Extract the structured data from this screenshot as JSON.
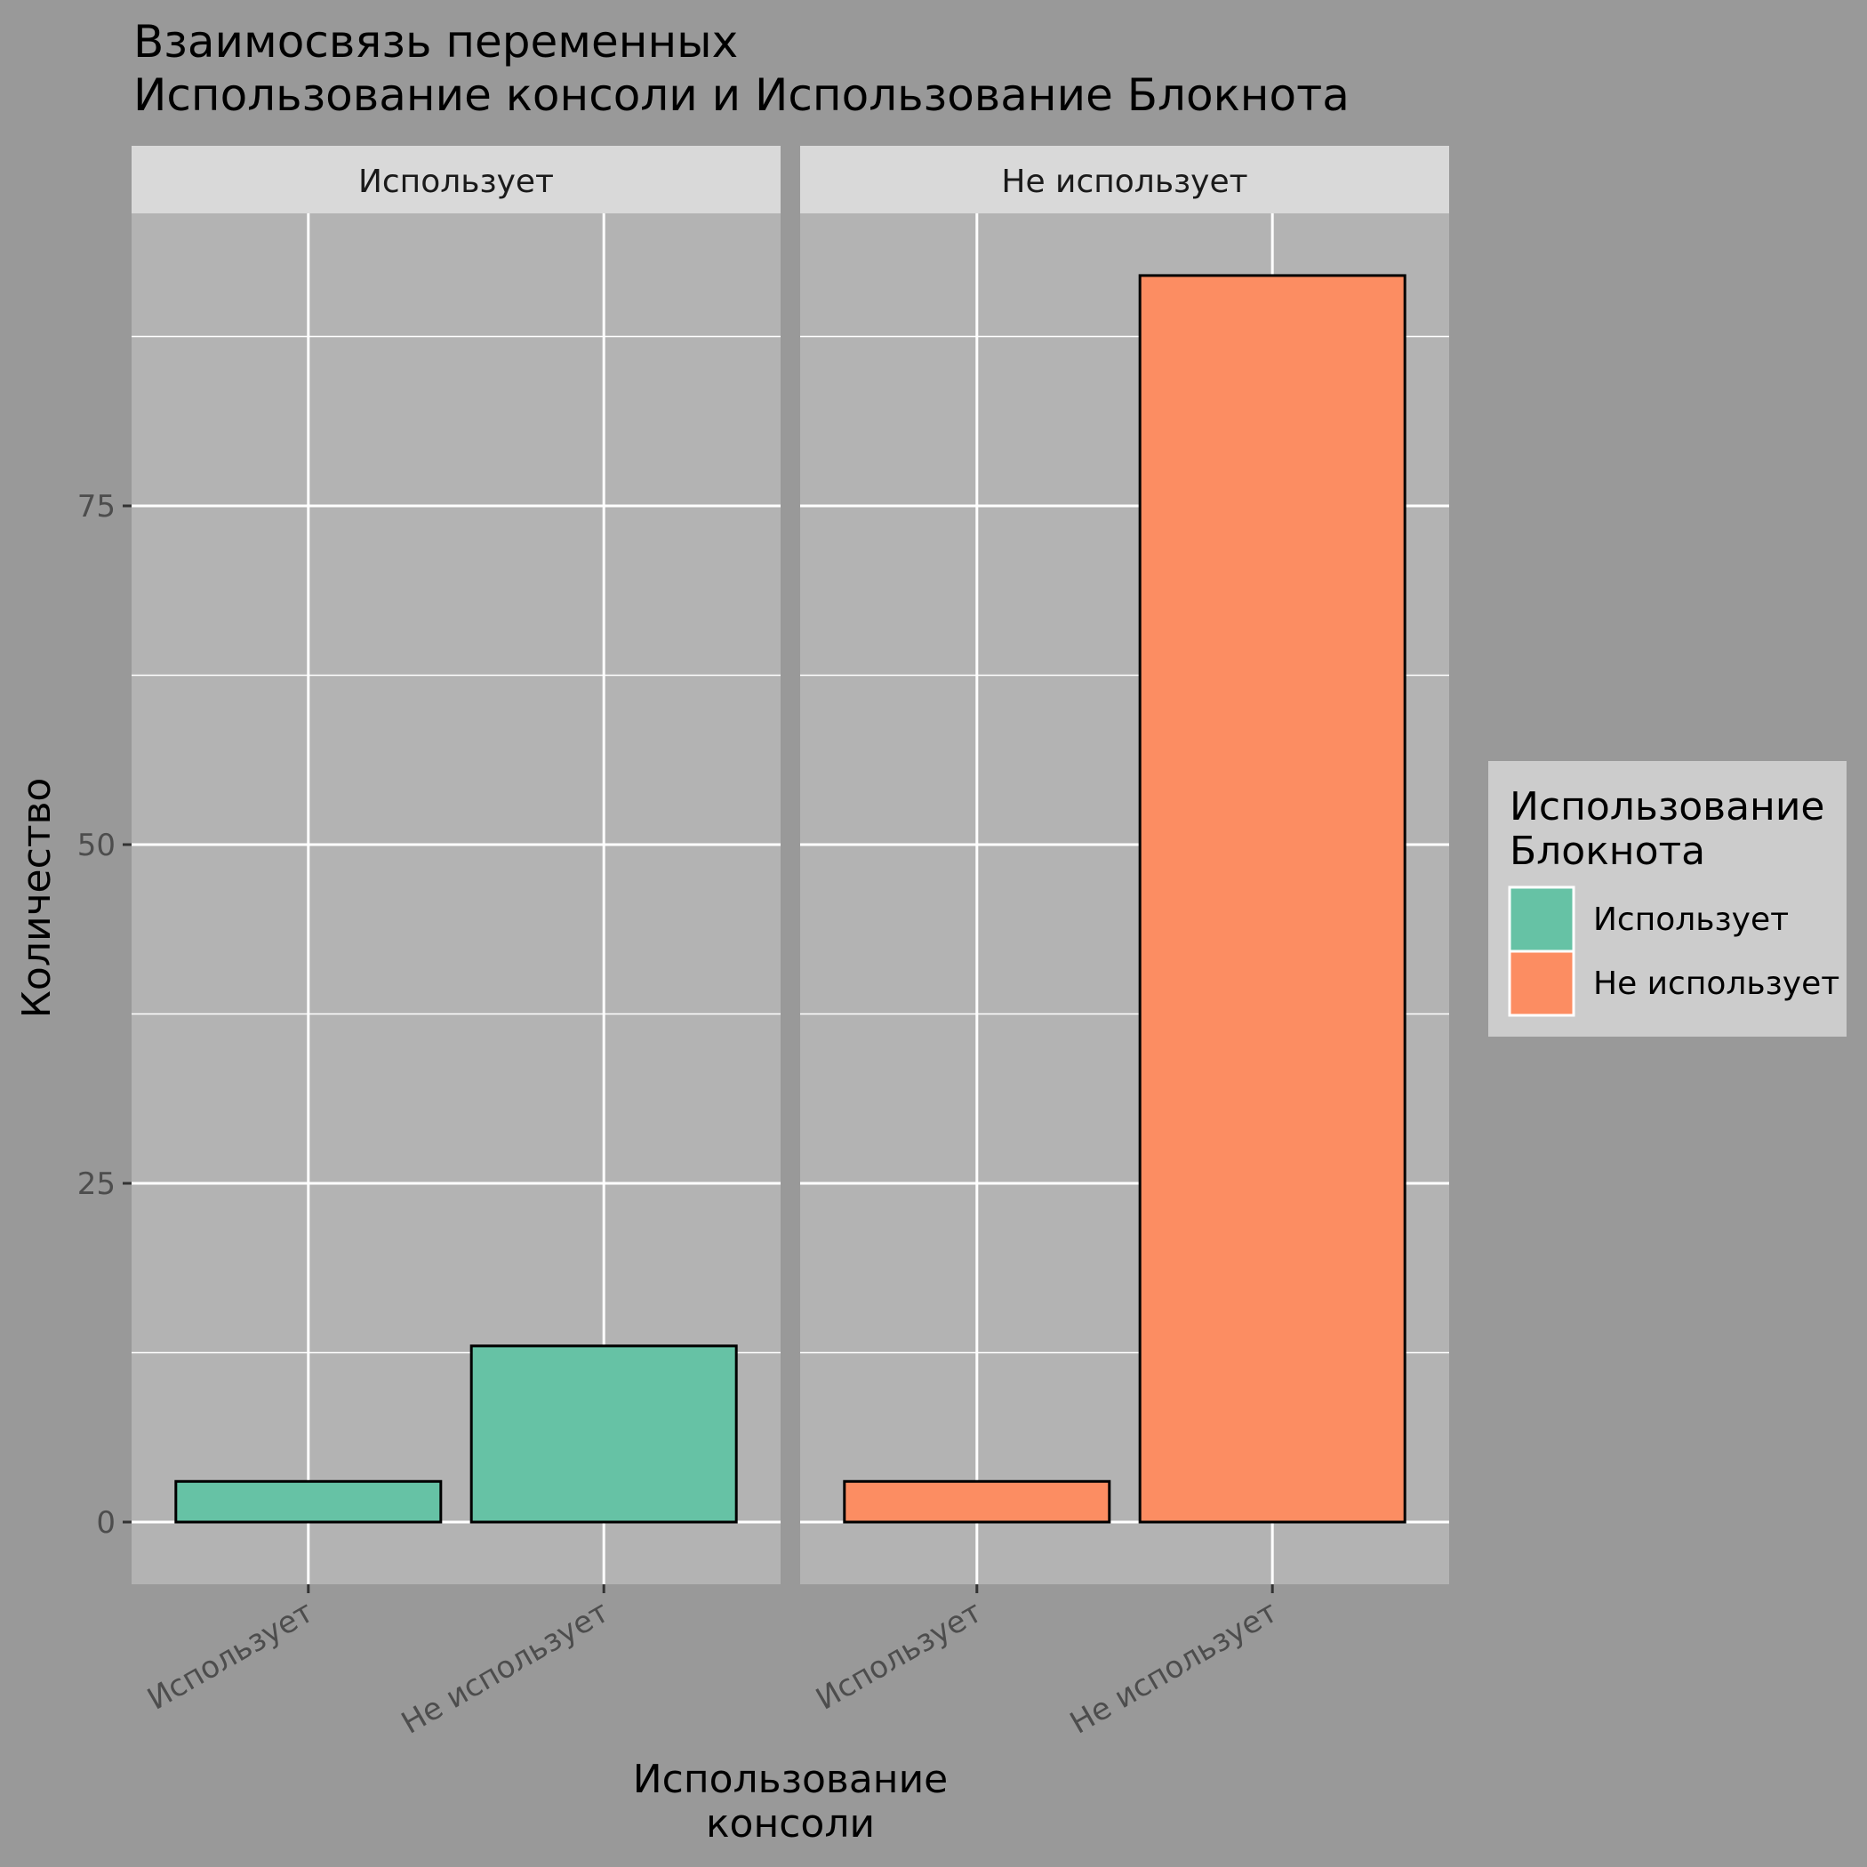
{
  "chart_data": {
    "type": "bar",
    "title": [
      "Взаимосвязь переменных",
      " Использование консоли и Использование Блокнота"
    ],
    "xlabel": [
      "Использование",
      "консоли"
    ],
    "ylabel": "Количество",
    "ylim": [
      -3.9,
      95
    ],
    "y_ticks": [
      0,
      25,
      50,
      75
    ],
    "y_tick_labels": [
      "0",
      "25",
      "50",
      "75"
    ],
    "grid": true,
    "legend": {
      "title": [
        "Использование",
        "Блокнота"
      ],
      "position": "right",
      "entries": [
        {
          "label": "Использует",
          "color": "#66C2A5"
        },
        {
          "label": "Не использует",
          "color": "#FC8D62"
        }
      ]
    },
    "facets": [
      {
        "label": "Использует",
        "categories": [
          "Использует",
          "Не использует"
        ],
        "values": [
          3,
          13
        ],
        "color": "#66C2A5"
      },
      {
        "label": "Не использует",
        "categories": [
          "Использует",
          "Не использует"
        ],
        "values": [
          3,
          92
        ],
        "color": "#FC8D62"
      }
    ]
  },
  "colors": {
    "page_background": "#999999",
    "panel_background": "#B3B3B3",
    "strip_background": "#D9D9D9",
    "legend_background": "#CCCCCC",
    "grid": "#FFFFFF",
    "bar_outline": "#000000"
  }
}
